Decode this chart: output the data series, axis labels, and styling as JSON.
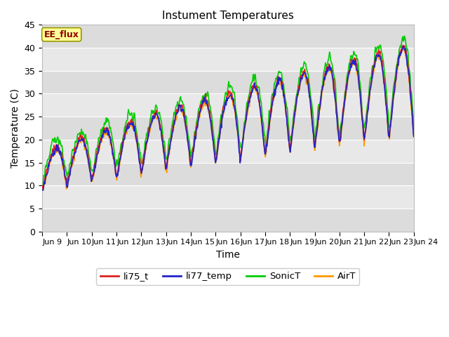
{
  "title": "Instument Temperatures",
  "xlabel": "Time",
  "ylabel": "Temperature (C)",
  "ylim": [
    0,
    45
  ],
  "yticks": [
    0,
    5,
    10,
    15,
    20,
    25,
    30,
    35,
    40,
    45
  ],
  "xtick_labels": [
    "Jun 9",
    "Jun 10",
    "Jun 11",
    "Jun 12",
    "Jun 13",
    "Jun 14",
    "Jun 15",
    "Jun 16",
    "Jun 17",
    "Jun 18",
    "Jun 19",
    "Jun 20",
    "Jun 21",
    "Jun 22",
    "Jun 23",
    "Jun 24"
  ],
  "annotation_text": "EE_flux",
  "annotation_color": "#8B0000",
  "annotation_bg": "#FFFF99",
  "annotation_border": "#999900",
  "colors": {
    "li75_t": "#DD2222",
    "li77_temp": "#2222CC",
    "SonicT": "#00CC00",
    "AirT": "#FF9900"
  },
  "linewidth": 1.2,
  "band_colors": [
    "#E8E8E8",
    "#D8D8D8"
  ],
  "figsize": [
    6.4,
    4.8
  ],
  "dpi": 100
}
